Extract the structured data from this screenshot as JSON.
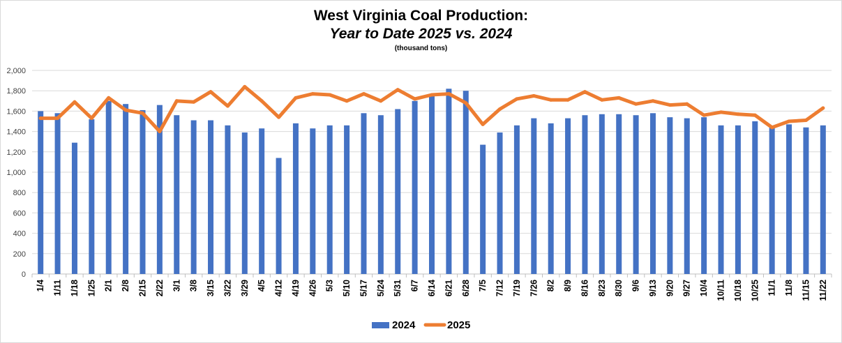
{
  "chart_data": {
    "type": "bar",
    "title": "West Virginia Coal Production:",
    "subtitle": "Year to Date 2025 vs. 2024",
    "unit_note": "(thousand tons)",
    "xlabel": "",
    "ylabel": "",
    "ylim": [
      0,
      2000
    ],
    "yticks": [
      0,
      200,
      400,
      600,
      800,
      1000,
      1200,
      1400,
      1600,
      1800,
      2000
    ],
    "ytick_labels": [
      "0",
      "200",
      "400",
      "600",
      "800",
      "1,000",
      "1,200",
      "1,400",
      "1,600",
      "1,800",
      "2,000"
    ],
    "grid": true,
    "legend_position": "bottom",
    "categories": [
      "1/4",
      "1/11",
      "1/18",
      "1/25",
      "2/1",
      "2/8",
      "2/15",
      "2/22",
      "3/1",
      "3/8",
      "3/15",
      "3/22",
      "3/29",
      "4/5",
      "4/12",
      "4/19",
      "4/26",
      "5/3",
      "5/10",
      "5/17",
      "5/24",
      "5/31",
      "6/7",
      "6/14",
      "6/21",
      "6/28",
      "7/5",
      "7/12",
      "7/19",
      "7/26",
      "8/2",
      "8/9",
      "8/16",
      "8/23",
      "8/30",
      "9/6",
      "9/13",
      "9/20",
      "9/27",
      "10/4",
      "10/11",
      "10/18",
      "10/25",
      "11/1",
      "11/8",
      "11/15",
      "11/22"
    ],
    "series": [
      {
        "name": "2024",
        "type": "bar",
        "color": "#4472c4",
        "values": [
          1600,
          1580,
          1290,
          1520,
          1700,
          1670,
          1610,
          1660,
          1560,
          1510,
          1510,
          1460,
          1390,
          1430,
          1140,
          1480,
          1430,
          1460,
          1460,
          1580,
          1560,
          1620,
          1700,
          1760,
          1820,
          1800,
          1270,
          1390,
          1460,
          1530,
          1480,
          1530,
          1560,
          1570,
          1570,
          1560,
          1580,
          1540,
          1530,
          1540,
          1460,
          1460,
          1500,
          1440,
          1470,
          1440,
          1460
        ]
      },
      {
        "name": "2025",
        "type": "line",
        "color": "#ed7d31",
        "values": [
          1530,
          1530,
          1690,
          1530,
          1730,
          1610,
          1580,
          1400,
          1700,
          1690,
          1790,
          1650,
          1840,
          1700,
          1540,
          1730,
          1770,
          1760,
          1700,
          1770,
          1700,
          1810,
          1720,
          1760,
          1770,
          1680,
          1470,
          1620,
          1720,
          1750,
          1710,
          1710,
          1790,
          1710,
          1730,
          1670,
          1700,
          1660,
          1670,
          1560,
          1590,
          1570,
          1560,
          1440,
          1500,
          1510,
          1630
        ]
      }
    ]
  }
}
